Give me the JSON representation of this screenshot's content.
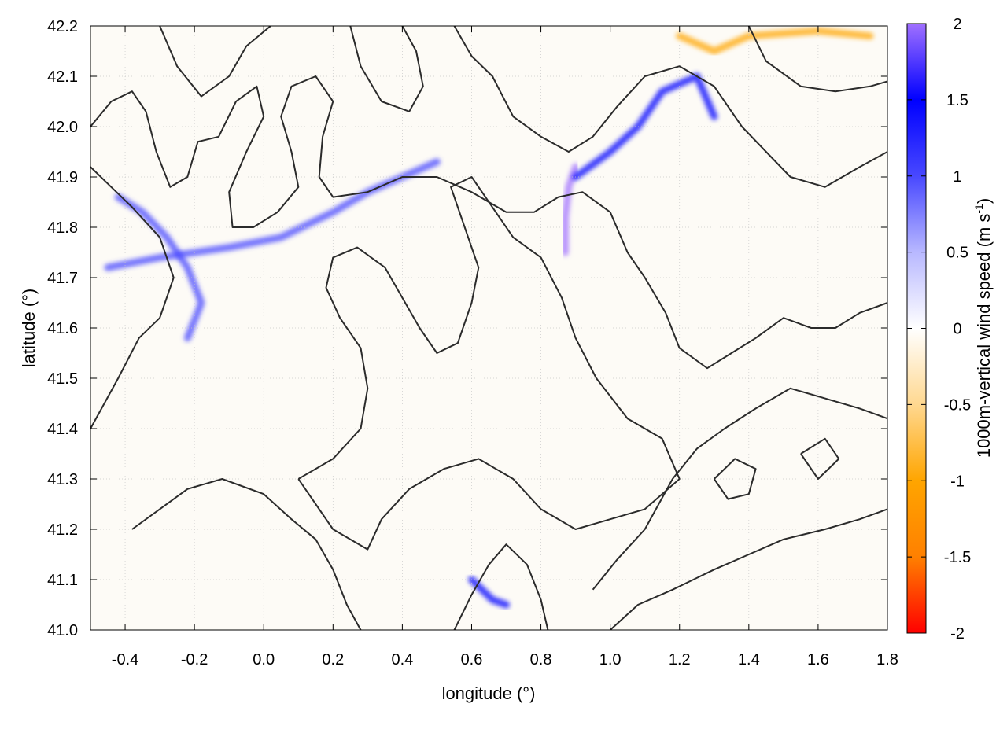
{
  "chart_data": {
    "type": "heatmap",
    "title": "",
    "xlabel": "longitude (°)",
    "ylabel": "latitude (°)",
    "xlim": [
      -0.5,
      1.8
    ],
    "ylim": [
      41.0,
      42.2
    ],
    "x_ticks": [
      "-0.4",
      "-0.2",
      "0.0",
      "0.2",
      "0.4",
      "0.6",
      "0.8",
      "1.0",
      "1.2",
      "1.4",
      "1.6",
      "1.8"
    ],
    "y_ticks": [
      "41.0",
      "41.1",
      "41.2",
      "41.3",
      "41.4",
      "41.5",
      "41.6",
      "41.7",
      "41.8",
      "41.9",
      "42.0",
      "42.1",
      "42.2"
    ],
    "grid": true,
    "colorbar": {
      "label": "1000m-vertical wind speed (m s",
      "label_sup": "-1",
      "label_end": ")",
      "range": [
        -2,
        2
      ],
      "tick_labels": [
        "2",
        "1.5",
        "1",
        "0.5",
        "0",
        "-0.5",
        "-1",
        "-1.5",
        "-2"
      ],
      "colors": [
        "#ff0000",
        "#ff8000",
        "#ffa500",
        "#ffd890",
        "#ffffff",
        "#b8b8ff",
        "#4848ff",
        "#0000ff",
        "#a070ff"
      ]
    },
    "features": [
      {
        "name": "updraft band (northwest ridge)",
        "points": [
          [
            -0.45,
            41.72
          ],
          [
            -0.3,
            41.74
          ],
          [
            -0.1,
            41.76
          ],
          [
            0.05,
            41.78
          ],
          [
            0.2,
            41.83
          ],
          [
            0.3,
            41.87
          ],
          [
            0.4,
            41.9
          ],
          [
            0.5,
            41.93
          ]
        ],
        "value": 1.2
      },
      {
        "name": "updraft band (west)",
        "points": [
          [
            -0.42,
            41.86
          ],
          [
            -0.35,
            41.83
          ],
          [
            -0.28,
            41.78
          ],
          [
            -0.22,
            41.72
          ],
          [
            -0.18,
            41.65
          ],
          [
            -0.22,
            41.58
          ]
        ],
        "value": 1.1
      },
      {
        "name": "updraft focus",
        "points": [
          [
            0.87,
            41.75
          ],
          [
            0.87,
            41.82
          ],
          [
            0.88,
            41.88
          ],
          [
            0.9,
            41.92
          ]
        ],
        "value": 1.8
      },
      {
        "name": "updraft band (northeast)",
        "points": [
          [
            0.9,
            41.9
          ],
          [
            1.0,
            41.95
          ],
          [
            1.08,
            42.0
          ],
          [
            1.15,
            42.07
          ],
          [
            1.25,
            42.1
          ],
          [
            1.3,
            42.02
          ]
        ],
        "value": 1.4
      },
      {
        "name": "updraft spot (south)",
        "points": [
          [
            0.6,
            41.1
          ],
          [
            0.66,
            41.06
          ],
          [
            0.7,
            41.05
          ]
        ],
        "value": 1.3
      },
      {
        "name": "downdraft patch (north)",
        "points": [
          [
            1.2,
            42.18
          ],
          [
            1.3,
            42.15
          ],
          [
            1.4,
            42.18
          ],
          [
            1.6,
            42.19
          ],
          [
            1.75,
            42.18
          ]
        ],
        "value": -0.9
      }
    ],
    "contours": [
      [
        [
          -0.5,
          42.0
        ],
        [
          -0.44,
          42.05
        ],
        [
          -0.38,
          42.07
        ],
        [
          -0.34,
          42.03
        ],
        [
          -0.31,
          41.95
        ],
        [
          -0.27,
          41.88
        ],
        [
          -0.22,
          41.9
        ],
        [
          -0.19,
          41.97
        ],
        [
          -0.13,
          41.98
        ],
        [
          -0.08,
          42.05
        ],
        [
          -0.02,
          42.08
        ],
        [
          0.0,
          42.02
        ],
        [
          -0.05,
          41.95
        ],
        [
          -0.1,
          41.87
        ],
        [
          -0.09,
          41.8
        ],
        [
          -0.03,
          41.8
        ],
        [
          0.04,
          41.83
        ],
        [
          0.1,
          41.88
        ],
        [
          0.08,
          41.95
        ],
        [
          0.05,
          42.02
        ],
        [
          0.08,
          42.08
        ],
        [
          0.15,
          42.1
        ],
        [
          0.2,
          42.05
        ],
        [
          0.17,
          41.98
        ],
        [
          0.16,
          41.9
        ],
        [
          0.2,
          41.86
        ],
        [
          0.3,
          41.87
        ],
        [
          0.4,
          41.9
        ],
        [
          0.5,
          41.9
        ],
        [
          0.6,
          41.87
        ],
        [
          0.7,
          41.83
        ],
        [
          0.78,
          41.83
        ],
        [
          0.85,
          41.86
        ],
        [
          0.92,
          41.87
        ],
        [
          1.0,
          41.83
        ],
        [
          1.05,
          41.75
        ],
        [
          1.1,
          41.7
        ],
        [
          1.16,
          41.63
        ],
        [
          1.2,
          41.56
        ],
        [
          1.28,
          41.52
        ],
        [
          1.35,
          41.55
        ],
        [
          1.42,
          41.58
        ],
        [
          1.5,
          41.62
        ],
        [
          1.58,
          41.6
        ],
        [
          1.65,
          41.6
        ],
        [
          1.72,
          41.63
        ],
        [
          1.8,
          41.65
        ]
      ],
      [
        [
          0.1,
          41.3
        ],
        [
          0.2,
          41.34
        ],
        [
          0.28,
          41.4
        ],
        [
          0.3,
          41.48
        ],
        [
          0.28,
          41.56
        ],
        [
          0.22,
          41.62
        ],
        [
          0.18,
          41.68
        ],
        [
          0.2,
          41.74
        ],
        [
          0.27,
          41.76
        ],
        [
          0.35,
          41.72
        ],
        [
          0.4,
          41.66
        ],
        [
          0.45,
          41.6
        ],
        [
          0.5,
          41.55
        ],
        [
          0.56,
          41.57
        ],
        [
          0.6,
          41.65
        ],
        [
          0.62,
          41.72
        ],
        [
          0.58,
          41.8
        ],
        [
          0.54,
          41.88
        ],
        [
          0.6,
          41.9
        ],
        [
          0.66,
          41.84
        ],
        [
          0.72,
          41.78
        ],
        [
          0.8,
          41.74
        ],
        [
          0.86,
          41.66
        ],
        [
          0.9,
          41.58
        ],
        [
          0.96,
          41.5
        ],
        [
          1.05,
          41.42
        ],
        [
          1.15,
          41.38
        ],
        [
          1.2,
          41.3
        ],
        [
          1.1,
          41.24
        ],
        [
          1.0,
          41.22
        ],
        [
          0.9,
          41.2
        ],
        [
          0.8,
          41.24
        ],
        [
          0.72,
          41.3
        ],
        [
          0.62,
          41.34
        ],
        [
          0.52,
          41.32
        ],
        [
          0.42,
          41.28
        ],
        [
          0.34,
          41.22
        ],
        [
          0.3,
          41.16
        ],
        [
          0.2,
          41.2
        ],
        [
          0.1,
          41.3
        ]
      ],
      [
        [
          -0.38,
          41.2
        ],
        [
          -0.3,
          41.24
        ],
        [
          -0.22,
          41.28
        ],
        [
          -0.12,
          41.3
        ],
        [
          0.0,
          41.27
        ],
        [
          0.08,
          41.22
        ],
        [
          0.15,
          41.18
        ],
        [
          0.2,
          41.12
        ],
        [
          0.24,
          41.05
        ],
        [
          0.28,
          41.0
        ]
      ],
      [
        [
          -0.5,
          41.4
        ],
        [
          -0.42,
          41.5
        ],
        [
          -0.36,
          41.58
        ],
        [
          -0.3,
          41.62
        ],
        [
          -0.26,
          41.7
        ],
        [
          -0.3,
          41.78
        ],
        [
          -0.38,
          41.84
        ],
        [
          -0.44,
          41.88
        ],
        [
          -0.5,
          41.92
        ]
      ],
      [
        [
          0.55,
          41.0
        ],
        [
          0.6,
          41.07
        ],
        [
          0.65,
          41.13
        ],
        [
          0.7,
          41.17
        ],
        [
          0.76,
          41.13
        ],
        [
          0.8,
          41.06
        ],
        [
          0.82,
          41.0
        ]
      ],
      [
        [
          1.0,
          41.0
        ],
        [
          1.08,
          41.05
        ],
        [
          1.18,
          41.08
        ],
        [
          1.3,
          41.12
        ],
        [
          1.4,
          41.15
        ],
        [
          1.5,
          41.18
        ],
        [
          1.62,
          41.2
        ],
        [
          1.72,
          41.22
        ],
        [
          1.8,
          41.24
        ]
      ],
      [
        [
          0.95,
          41.08
        ],
        [
          1.02,
          41.14
        ],
        [
          1.1,
          41.2
        ],
        [
          1.18,
          41.3
        ],
        [
          1.25,
          41.36
        ],
        [
          1.33,
          41.4
        ],
        [
          1.42,
          41.44
        ],
        [
          1.52,
          41.48
        ],
        [
          1.62,
          41.46
        ],
        [
          1.72,
          41.44
        ],
        [
          1.8,
          41.42
        ]
      ],
      [
        [
          0.55,
          42.2
        ],
        [
          0.6,
          42.14
        ],
        [
          0.66,
          42.1
        ],
        [
          0.72,
          42.02
        ],
        [
          0.8,
          41.98
        ],
        [
          0.88,
          41.95
        ],
        [
          0.95,
          41.98
        ],
        [
          1.02,
          42.04
        ],
        [
          1.1,
          42.1
        ],
        [
          1.2,
          42.12
        ],
        [
          1.3,
          42.08
        ],
        [
          1.38,
          42.0
        ],
        [
          1.45,
          41.95
        ],
        [
          1.52,
          41.9
        ],
        [
          1.62,
          41.88
        ],
        [
          1.72,
          41.92
        ],
        [
          1.8,
          41.95
        ]
      ],
      [
        [
          1.4,
          42.2
        ],
        [
          1.45,
          42.13
        ],
        [
          1.55,
          42.08
        ],
        [
          1.65,
          42.07
        ],
        [
          1.75,
          42.08
        ],
        [
          1.8,
          42.09
        ]
      ],
      [
        [
          -0.3,
          42.2
        ],
        [
          -0.25,
          42.12
        ],
        [
          -0.18,
          42.06
        ],
        [
          -0.1,
          42.1
        ],
        [
          -0.05,
          42.16
        ],
        [
          0.02,
          42.2
        ]
      ],
      [
        [
          0.25,
          42.2
        ],
        [
          0.28,
          42.12
        ],
        [
          0.34,
          42.05
        ],
        [
          0.42,
          42.03
        ],
        [
          0.46,
          42.08
        ],
        [
          0.44,
          42.15
        ],
        [
          0.4,
          42.2
        ]
      ],
      [
        [
          1.3,
          41.3
        ],
        [
          1.36,
          41.34
        ],
        [
          1.42,
          41.32
        ],
        [
          1.4,
          41.27
        ],
        [
          1.34,
          41.26
        ],
        [
          1.3,
          41.3
        ]
      ],
      [
        [
          1.55,
          41.35
        ],
        [
          1.62,
          41.38
        ],
        [
          1.66,
          41.34
        ],
        [
          1.6,
          41.3
        ],
        [
          1.55,
          41.35
        ]
      ]
    ]
  }
}
